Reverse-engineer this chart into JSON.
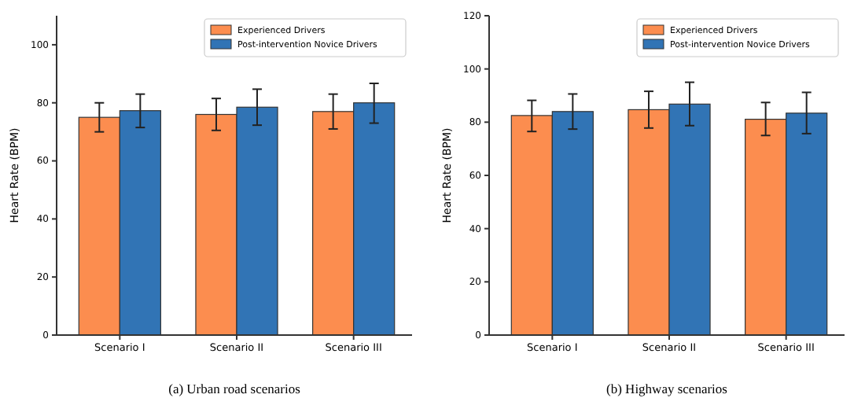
{
  "chart_data": [
    {
      "type": "bar",
      "title": "(a) Urban road scenarios",
      "ylabel": "Heart Rate (BPM)",
      "categories": [
        "Scenario I",
        "Scenario II",
        "Scenario III"
      ],
      "series": [
        {
          "name": "Experienced Drivers",
          "color": "#fc8d4f",
          "values": [
            75,
            76,
            77
          ],
          "errors": [
            [
              70,
              80
            ],
            [
              70.5,
              81.5
            ],
            [
              71,
              83
            ]
          ]
        },
        {
          "name": "Post-intervention Novice Drivers",
          "color": "#3174b5",
          "values": [
            77.3,
            78.5,
            80
          ],
          "errors": [
            [
              71.5,
              83
            ],
            [
              72.3,
              84.7
            ],
            [
              73,
              86.7
            ]
          ]
        }
      ],
      "ylim": [
        0,
        110
      ],
      "yticks": [
        0,
        20,
        40,
        60,
        80,
        100
      ],
      "legend": "top right"
    },
    {
      "type": "bar",
      "title": "(b) Highway scenarios",
      "ylabel": "Heart Rate (BPM)",
      "categories": [
        "Scenario I",
        "Scenario II",
        "Scenario III"
      ],
      "series": [
        {
          "name": "Experienced Drivers",
          "color": "#fc8d4f",
          "values": [
            82.5,
            84.7,
            81.1
          ],
          "errors": [
            [
              76.5,
              88.2
            ],
            [
              77.8,
              91.6
            ],
            [
              75,
              87.4
            ]
          ]
        },
        {
          "name": "Post-intervention Novice Drivers",
          "color": "#3174b5",
          "values": [
            84,
            86.8,
            83.4
          ],
          "errors": [
            [
              77.4,
              90.6
            ],
            [
              78.7,
              95
            ],
            [
              75.7,
              91.2
            ]
          ]
        }
      ],
      "ylim": [
        0,
        120
      ],
      "yticks": [
        0,
        20,
        40,
        60,
        80,
        100,
        120
      ],
      "legend": "top right"
    }
  ]
}
